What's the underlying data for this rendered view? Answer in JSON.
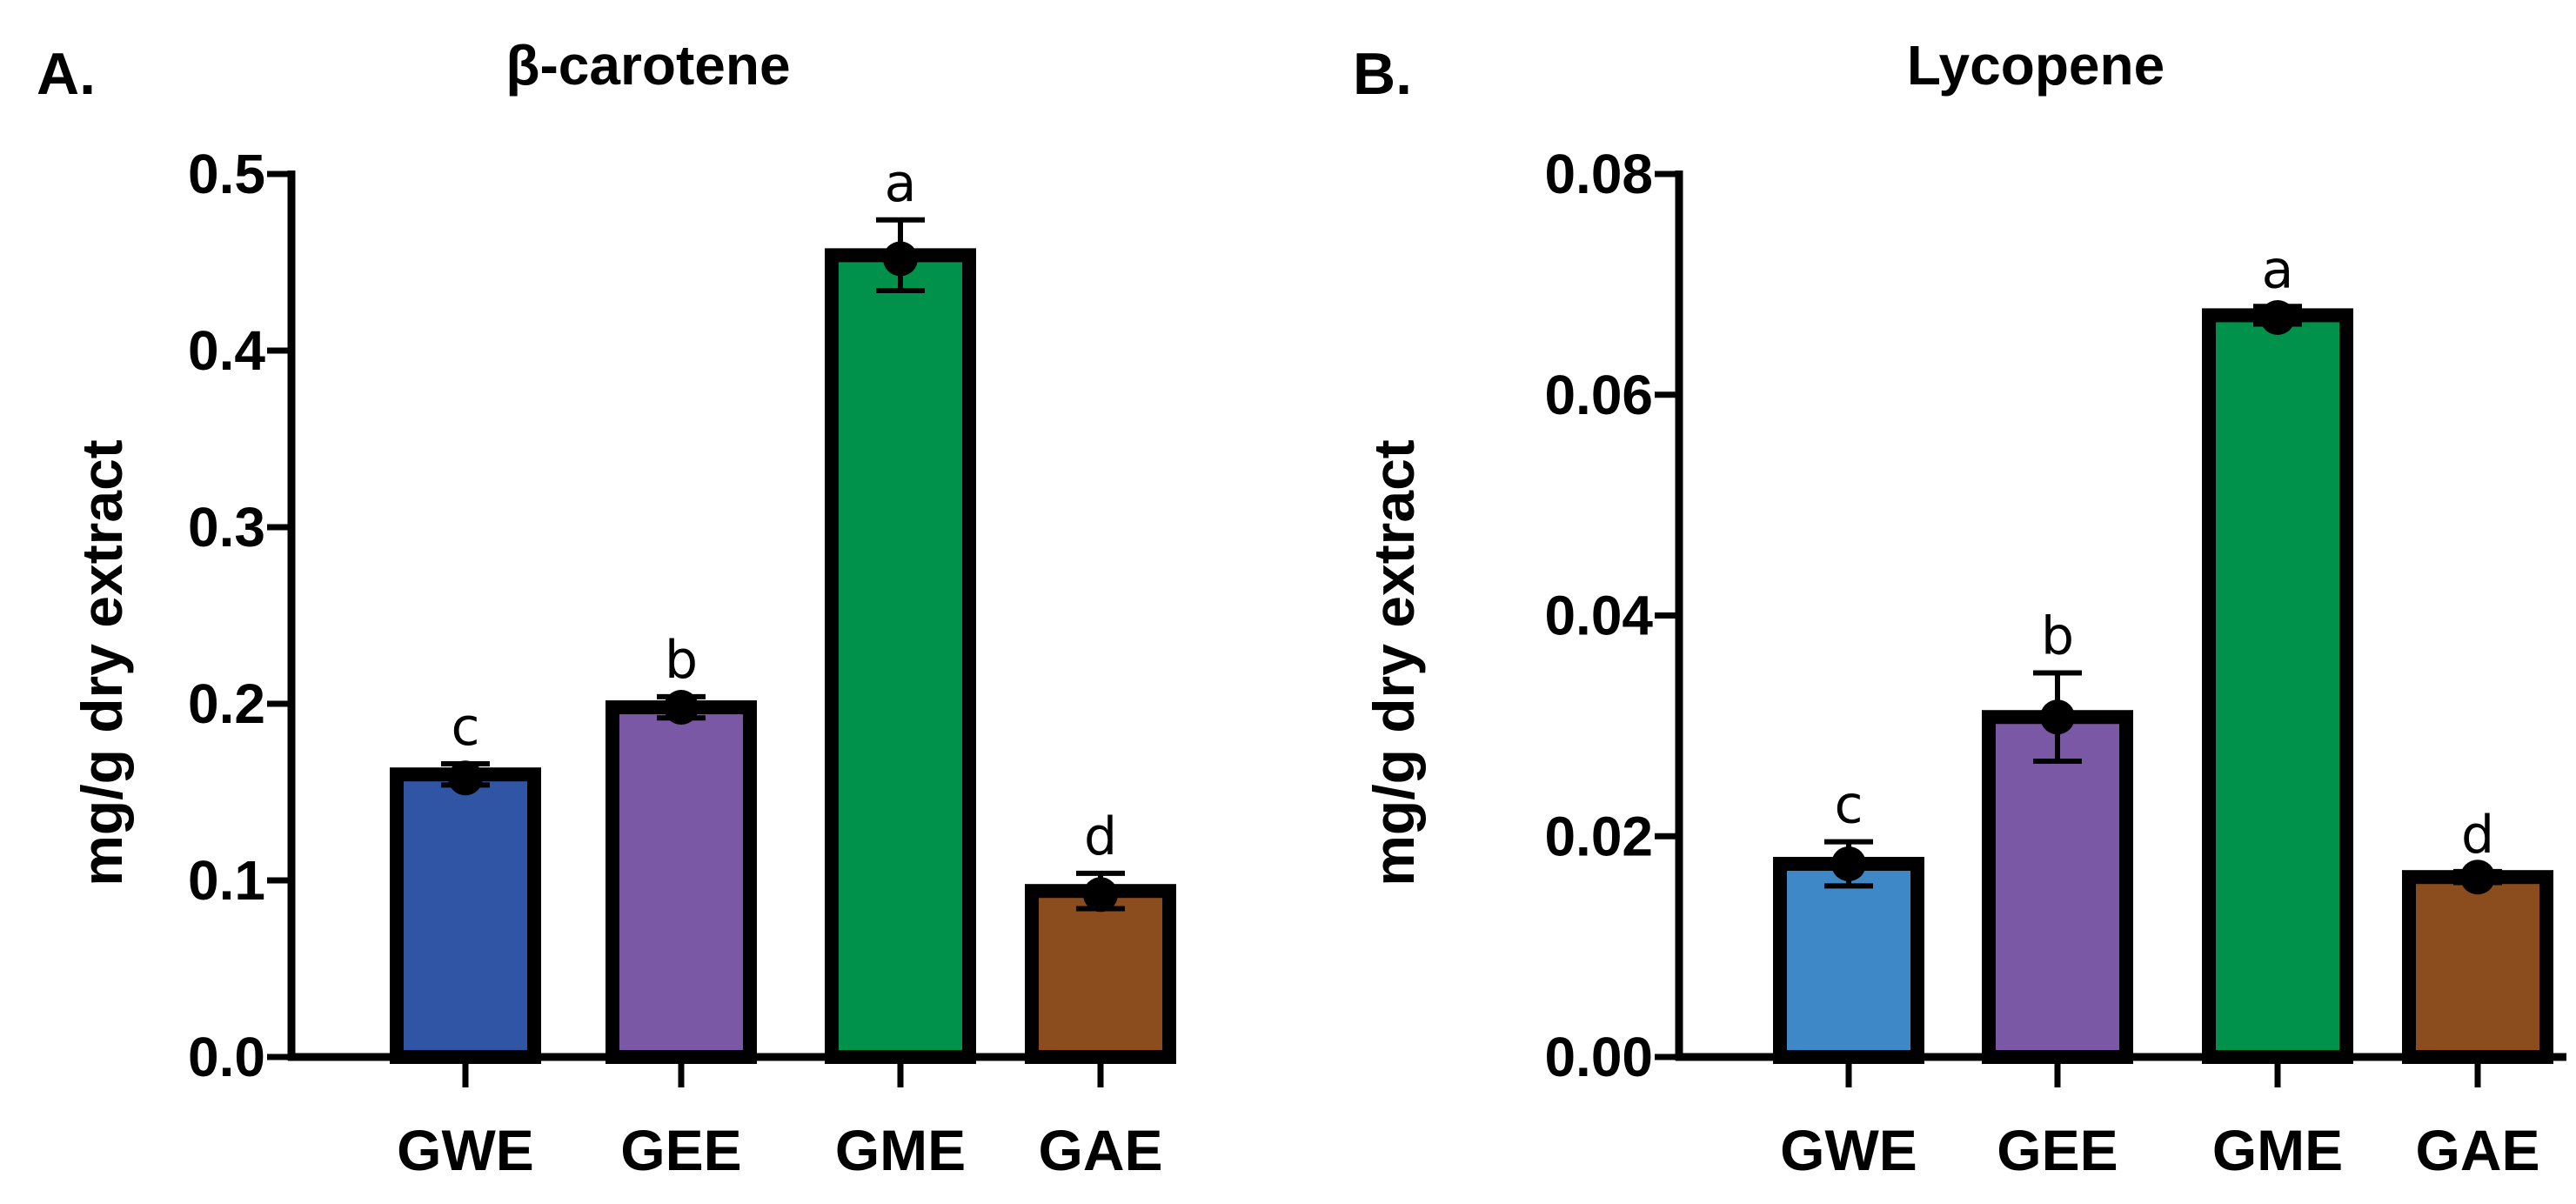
{
  "chart_data": [
    {
      "type": "bar",
      "panel_label": "A.",
      "title": "β-carotene",
      "xlabel": "",
      "ylabel": "mg/g dry extract",
      "categories": [
        "GWE",
        "GEE",
        "GME",
        "GAE"
      ],
      "values": [
        0.16,
        0.198,
        0.454,
        0.094
      ],
      "errors": [
        0.006,
        0.006,
        0.02,
        0.01
      ],
      "points": [
        0.158,
        0.198,
        0.452,
        0.092
      ],
      "letters": [
        "c",
        "b",
        "a",
        "d"
      ],
      "colors": [
        "#2F55A4",
        "#7B58A6",
        "#00914A",
        "#8B4D1E"
      ],
      "ylim": [
        0,
        0.5
      ],
      "yticks": [
        0.0,
        0.1,
        0.2,
        0.3,
        0.4,
        0.5
      ],
      "ytick_labels": [
        "0.0",
        "0.1",
        "0.2",
        "0.3",
        "0.4",
        "0.5"
      ],
      "grid": false
    },
    {
      "type": "bar",
      "panel_label": "B.",
      "title": "Lycopene",
      "xlabel": "",
      "ylabel": "mg/g dry extract",
      "categories": [
        "GWE",
        "GEE",
        "GME",
        "GAE"
      ],
      "values": [
        0.0175,
        0.0308,
        0.0672,
        0.0163
      ],
      "errors": [
        0.002,
        0.004,
        0.0008,
        0.0005
      ],
      "points": [
        0.0175,
        0.0308,
        0.067,
        0.0163
      ],
      "letters": [
        "c",
        "b",
        "a",
        "d"
      ],
      "colors": [
        "#3F88C8",
        "#7B58A6",
        "#00914A",
        "#8B4D1E"
      ],
      "ylim": [
        0,
        0.08
      ],
      "yticks": [
        0.0,
        0.02,
        0.04,
        0.06,
        0.08
      ],
      "ytick_labels": [
        "0.00",
        "0.02",
        "0.04",
        "0.06",
        "0.08"
      ],
      "grid": false
    }
  ]
}
